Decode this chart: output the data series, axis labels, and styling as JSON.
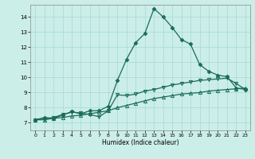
{
  "xlabel": "Humidex (Indice chaleur)",
  "bg_color": "#cceee8",
  "grid_color": "#aaddd8",
  "line_color": "#1a6b5a",
  "xlim": [
    -0.5,
    23.5
  ],
  "ylim": [
    6.5,
    14.8
  ],
  "yticks": [
    7,
    8,
    9,
    10,
    11,
    12,
    13,
    14
  ],
  "xticks": [
    0,
    1,
    2,
    3,
    4,
    5,
    6,
    7,
    8,
    9,
    10,
    11,
    12,
    13,
    14,
    15,
    16,
    17,
    18,
    19,
    20,
    21,
    22,
    23
  ],
  "line1_x": [
    0,
    1,
    2,
    3,
    4,
    5,
    6,
    7,
    8,
    9,
    10,
    11,
    12,
    13,
    14,
    15,
    16,
    17,
    18,
    19,
    20,
    21,
    22,
    23
  ],
  "line1_y": [
    7.2,
    7.35,
    7.3,
    7.5,
    7.75,
    7.6,
    7.8,
    7.8,
    8.1,
    9.8,
    11.2,
    12.3,
    12.9,
    14.55,
    14.0,
    13.3,
    12.5,
    12.2,
    10.85,
    10.4,
    10.15,
    10.05,
    9.3,
    9.2
  ],
  "line2_x": [
    0,
    1,
    2,
    3,
    4,
    5,
    6,
    7,
    8,
    9,
    10,
    11,
    12,
    13,
    14,
    15,
    16,
    17,
    18,
    19,
    20,
    21,
    22,
    23
  ],
  "line2_y": [
    7.2,
    7.25,
    7.35,
    7.55,
    7.7,
    7.65,
    7.55,
    7.4,
    7.8,
    8.85,
    8.8,
    8.9,
    9.1,
    9.2,
    9.35,
    9.5,
    9.6,
    9.7,
    9.8,
    9.85,
    9.9,
    9.95,
    9.6,
    9.2
  ],
  "line3_x": [
    0,
    1,
    2,
    3,
    4,
    5,
    6,
    7,
    8,
    9,
    10,
    11,
    12,
    13,
    14,
    15,
    16,
    17,
    18,
    19,
    20,
    21,
    22,
    23
  ],
  "line3_y": [
    7.2,
    7.2,
    7.3,
    7.35,
    7.45,
    7.5,
    7.6,
    7.7,
    7.8,
    8.0,
    8.15,
    8.3,
    8.45,
    8.6,
    8.7,
    8.8,
    8.9,
    8.95,
    9.0,
    9.1,
    9.15,
    9.2,
    9.25,
    9.3
  ],
  "marker1": "D",
  "marker2": "v",
  "marker3": "^",
  "ms": 2.5
}
